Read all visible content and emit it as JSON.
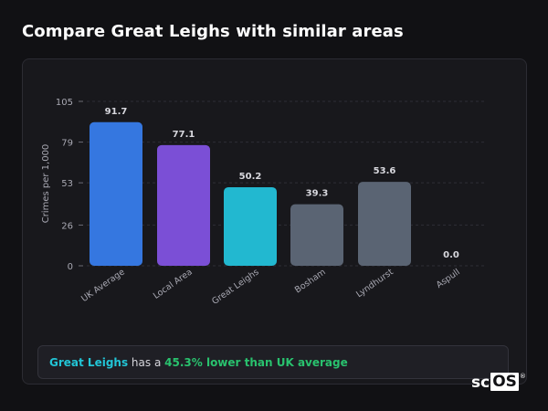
{
  "page": {
    "title": "Compare Great Leighs with similar areas"
  },
  "chart_data": {
    "type": "bar",
    "categories": [
      "UK Average",
      "Local Area",
      "Great Leighs",
      "Bosham",
      "Lyndhurst",
      "Aspull"
    ],
    "values": [
      91.7,
      77.1,
      50.2,
      39.3,
      53.6,
      0.0
    ],
    "value_labels": [
      "91.7",
      "77.1",
      "50.2",
      "39.3",
      "53.6",
      "0.0"
    ],
    "colors": [
      "#3577e0",
      "#7b4fd6",
      "#22b8d0",
      "#5a6473",
      "#5a6473",
      "#5a6473"
    ],
    "ylabel": "Crimes per 1,000",
    "xlabel": "",
    "yticks": [
      0,
      26,
      53,
      79,
      105
    ],
    "ylim": [
      0,
      105
    ],
    "grid": true,
    "legend": "none"
  },
  "summary": {
    "place": "Great Leighs",
    "middle": "has a",
    "difference": "45.3% lower than UK average"
  },
  "brand": {
    "part1": "sc",
    "part2": "OS",
    "reg": "®"
  }
}
